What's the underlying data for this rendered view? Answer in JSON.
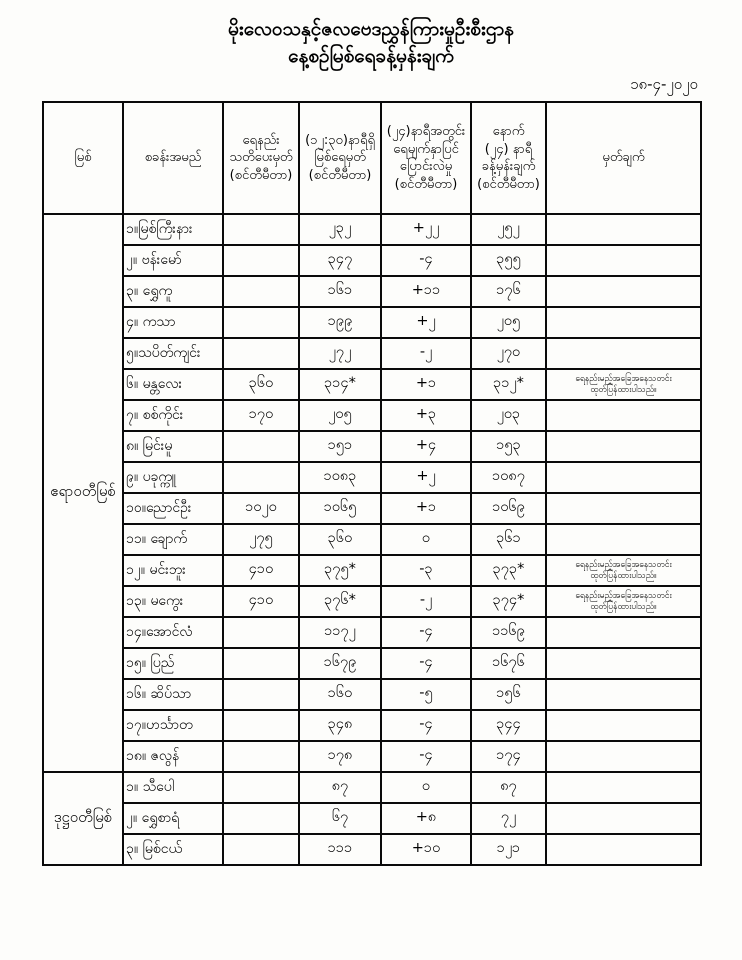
{
  "page": {
    "title_line1": "မိုးလေဝသနှင့်ဇလဗေဒညွှန်ကြားမှုဦးစီးဌာန",
    "title_line2": "နေ့စဉ်မြစ်ရေခန့်မှန်းချက်",
    "date": "၁၈-၄-၂၀၂၀"
  },
  "table": {
    "headers": [
      "မြစ်",
      "စခန်းအမည်",
      "ရေနည်း\nသတိပေးမှတ်\n(စင်တီမီတာ)",
      "(၁၂:၃၀)နာရီရှိ\nမြစ်ရေမှတ်\n(စင်တီမီတာ)",
      "(၂၄)နာရီအတွင်း\nရေမျက်နှာပြင်\nပြောင်းလဲမှု\n(စင်တီမီတာ)",
      "နောက်\n(၂၄) နာရီ\nခန့်မှန်းချက်\n(စင်တီမီတာ)",
      "မှတ်ချက်"
    ],
    "groups": [
      {
        "river": "ဧရာဝတီမြစ်",
        "rows": [
          {
            "name": "၁။မြစ်ကြီးနား",
            "warning": "",
            "level": "၂၃၂",
            "change": "+၂၂",
            "forecast": "၂၅၂",
            "remark": ""
          },
          {
            "name": "၂။ ဗန်းမော်",
            "warning": "",
            "level": "၃၄၇",
            "change": "-၄",
            "forecast": "၃၅၅",
            "remark": ""
          },
          {
            "name": "၃။ ရွှေကူ",
            "warning": "",
            "level": "၁၆၁",
            "change": "+၁၁",
            "forecast": "၁၇၆",
            "remark": ""
          },
          {
            "name": "၄။ ကသာ",
            "warning": "",
            "level": "၁၉၉",
            "change": "+၂",
            "forecast": "၂၀၅",
            "remark": ""
          },
          {
            "name": "၅။သပိတ်ကျင်း",
            "warning": "",
            "level": "၂၇၂",
            "change": "-၂",
            "forecast": "၂၇၀",
            "remark": ""
          },
          {
            "name": "၆။ မန္တလေး",
            "warning": "၃၆၀",
            "level": "၃၁၄*",
            "change": "+၁",
            "forecast": "၃၁၂*",
            "remark": "ရေနည်းမည့်အခြေအနေသတင်း\nထုတ်ပြန်ထားပါသည်။"
          },
          {
            "name": "၇။ စစ်ကိုင်း",
            "warning": "၁၇၀",
            "level": "၂၀၅",
            "change": "+၃",
            "forecast": "၂၀၃",
            "remark": ""
          },
          {
            "name": "၈။ မြင်းမူ",
            "warning": "",
            "level": "၁၅၁",
            "change": "+၄",
            "forecast": "၁၅၃",
            "remark": ""
          },
          {
            "name": "၉။ ပခုက္ကူ",
            "warning": "",
            "level": "၁၀၈၃",
            "change": "+၂",
            "forecast": "၁၀၈၇",
            "remark": ""
          },
          {
            "name": "၁၀။ညောင်ဦး",
            "warning": "၁၀၂၀",
            "level": "၁၀၆၅",
            "change": "+၁",
            "forecast": "၁၀၆၉",
            "remark": ""
          },
          {
            "name": "၁၁။ ချောက်",
            "warning": "၂၇၅",
            "level": "၃၆၀",
            "change": "၀",
            "forecast": "၃၆၁",
            "remark": ""
          },
          {
            "name": "၁၂။ မင်းဘူး",
            "warning": "၄၁၀",
            "level": "၃၇၅*",
            "change": "-၃",
            "forecast": "၃၇၃*",
            "remark": "ရေနည်းမည့်အခြေအနေသတင်း\nထုတ်ပြန်ထားပါသည်။"
          },
          {
            "name": "၁၃။ မကွေး",
            "warning": "၄၁၀",
            "level": "၃၇၆*",
            "change": "-၂",
            "forecast": "၃၇၄*",
            "remark": "ရေနည်းမည့်အခြေအနေသတင်း\nထုတ်ပြန်ထားပါသည်။"
          },
          {
            "name": "၁၄။အောင်လံ",
            "warning": "",
            "level": "၁၁၇၂",
            "change": "-၄",
            "forecast": "၁၁၆၉",
            "remark": ""
          },
          {
            "name": "၁၅။ ပြည်",
            "warning": "",
            "level": "၁၆၇၉",
            "change": "-၄",
            "forecast": "၁၆၇၆",
            "remark": ""
          },
          {
            "name": "၁၆။ ဆိပ်သာ",
            "warning": "",
            "level": "၁၆၀",
            "change": "-၅",
            "forecast": "၁၅၆",
            "remark": ""
          },
          {
            "name": "၁၇။ဟင်္သာတ",
            "warning": "",
            "level": "၃၄၈",
            "change": "-၄",
            "forecast": "၃၄၄",
            "remark": ""
          },
          {
            "name": "၁၈။ ဇလွန်",
            "warning": "",
            "level": "၁၇၈",
            "change": "-၄",
            "forecast": "၁၇၄",
            "remark": ""
          }
        ]
      },
      {
        "river": "ဒုဋ္ဌဝတီမြစ်",
        "rows": [
          {
            "name": "၁။ သီပေါ",
            "warning": "",
            "level": "၈၇",
            "change": "၀",
            "forecast": "၈၇",
            "remark": ""
          },
          {
            "name": "၂။ ရွှေစာရံ",
            "warning": "",
            "level": "၆၇",
            "change": "+၈",
            "forecast": "၇၂",
            "remark": ""
          },
          {
            "name": "၃။ မြစ်ငယ်",
            "warning": "",
            "level": "၁၁၁",
            "change": "+၁၀",
            "forecast": "၁၂၁",
            "remark": ""
          }
        ]
      }
    ]
  }
}
